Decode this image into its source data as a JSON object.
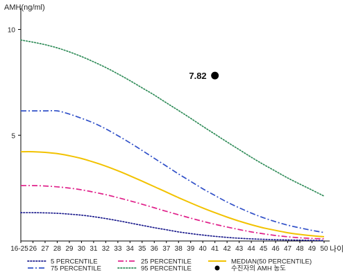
{
  "chart_data": {
    "type": "line",
    "ylabel": "AMH(ng/ml)",
    "xlabel": "나이",
    "ylim": [
      0,
      11
    ],
    "yticks": [
      5,
      10
    ],
    "ytick_labels": [
      "5",
      "10"
    ],
    "categories": [
      "16-25",
      "26",
      "27",
      "28",
      "29",
      "30",
      "31",
      "32",
      "33",
      "34",
      "35",
      "36",
      "37",
      "38",
      "39",
      "40",
      "41",
      "42",
      "43",
      "44",
      "45",
      "46",
      "47",
      "48",
      "49",
      "50"
    ],
    "grid": false,
    "legend_position": "bottom",
    "series": [
      {
        "name": "5 PERCENTILE",
        "color": "#1a1a8c",
        "dash": "dot",
        "values": [
          1.34,
          1.34,
          1.33,
          1.31,
          1.27,
          1.22,
          1.15,
          1.06,
          0.96,
          0.85,
          0.74,
          0.63,
          0.53,
          0.43,
          0.35,
          0.28,
          0.22,
          0.17,
          0.13,
          0.1,
          0.08,
          0.06,
          0.05,
          0.04,
          0.03,
          0.02
        ]
      },
      {
        "name": "25 PERCENTILE",
        "color": "#e0208a",
        "dash": "dashdot",
        "values": [
          2.62,
          2.62,
          2.6,
          2.56,
          2.5,
          2.42,
          2.31,
          2.19,
          2.05,
          1.9,
          1.74,
          1.57,
          1.4,
          1.24,
          1.08,
          0.93,
          0.79,
          0.66,
          0.54,
          0.43,
          0.34,
          0.26,
          0.2,
          0.15,
          0.12,
          0.1
        ]
      },
      {
        "name": "MEDIAN(50 PERCENTILE)",
        "color": "#f2c200",
        "dash": "solid",
        "values": [
          4.22,
          4.22,
          4.19,
          4.13,
          4.03,
          3.9,
          3.73,
          3.54,
          3.32,
          3.08,
          2.83,
          2.57,
          2.31,
          2.05,
          1.8,
          1.56,
          1.34,
          1.13,
          0.94,
          0.77,
          0.62,
          0.5,
          0.39,
          0.31,
          0.25,
          0.2
        ]
      },
      {
        "name": "75 PERCENTILE",
        "color": "#3050c8",
        "dash": "dashdot",
        "values": [
          6.15,
          6.15,
          6.15,
          6.15,
          6.0,
          5.8,
          5.58,
          5.3,
          4.98,
          4.64,
          4.28,
          3.91,
          3.54,
          3.17,
          2.82,
          2.47,
          2.15,
          1.84,
          1.57,
          1.32,
          1.1,
          0.91,
          0.75,
          0.62,
          0.5,
          0.4
        ]
      },
      {
        "name": "95 PERCENTILE",
        "color": "#2e8b57",
        "dash": "dot",
        "values": [
          9.5,
          9.4,
          9.28,
          9.13,
          8.94,
          8.72,
          8.47,
          8.2,
          7.9,
          7.58,
          7.24,
          6.9,
          6.53,
          6.17,
          5.8,
          5.42,
          5.05,
          4.68,
          4.32,
          3.96,
          3.62,
          3.3,
          2.98,
          2.69,
          2.41,
          2.12
        ]
      }
    ],
    "annotation": {
      "label": "7.82",
      "x": "41",
      "y": 7.82,
      "legend_name": "수진자의 AMH 농도",
      "color": "#000000"
    }
  }
}
